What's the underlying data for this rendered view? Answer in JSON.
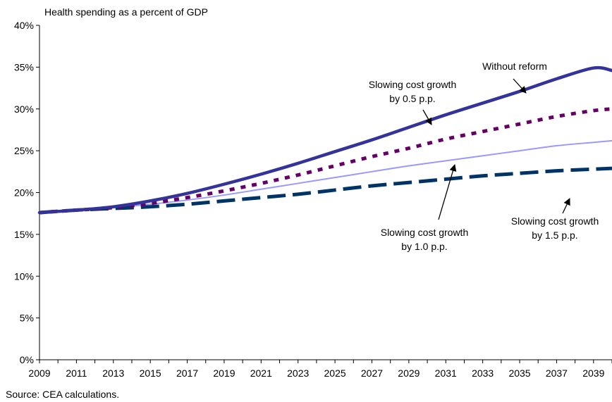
{
  "chart_data": {
    "type": "line",
    "title": "Health spending as a percent of GDP",
    "xlabel": "",
    "ylabel": "",
    "xlim": [
      2009,
      2040
    ],
    "ylim": [
      0,
      40
    ],
    "yticks": [
      0,
      5,
      10,
      15,
      20,
      25,
      30,
      35,
      40
    ],
    "ytick_labels": [
      "0%",
      "5%",
      "10%",
      "15%",
      "20%",
      "25%",
      "30%",
      "35%",
      "40%"
    ],
    "xticks": [
      2009,
      2011,
      2013,
      2015,
      2017,
      2019,
      2021,
      2023,
      2025,
      2027,
      2029,
      2031,
      2033,
      2035,
      2037,
      2039
    ],
    "xtick_labels": [
      "2009",
      "2011",
      "2013",
      "2015",
      "2017",
      "2019",
      "2021",
      "2023",
      "2025",
      "2027",
      "2029",
      "2031",
      "2033",
      "2035",
      "2037",
      "2039"
    ],
    "grid": false,
    "legend": "none (direct annotations)",
    "source": "Source: CEA calculations.",
    "series": [
      {
        "key": "without_reform",
        "color": "#33339A",
        "style": "solid-thick",
        "x": [
          2009,
          2011,
          2013,
          2015,
          2017,
          2019,
          2021,
          2023,
          2025,
          2027,
          2029,
          2031,
          2033,
          2035,
          2037,
          2039,
          2040
        ],
        "y": [
          17.6,
          17.9,
          18.3,
          19.0,
          19.9,
          21.0,
          22.2,
          23.5,
          24.9,
          26.3,
          27.8,
          29.3,
          30.7,
          32.1,
          33.6,
          34.9,
          34.6
        ]
      },
      {
        "key": "slow_0_5",
        "color": "#660066",
        "style": "dotted-thick",
        "x": [
          2009,
          2011,
          2013,
          2015,
          2017,
          2019,
          2021,
          2023,
          2025,
          2027,
          2029,
          2031,
          2033,
          2035,
          2037,
          2039,
          2040
        ],
        "y": [
          17.6,
          17.9,
          18.2,
          18.7,
          19.4,
          20.2,
          21.1,
          22.1,
          23.2,
          24.3,
          25.3,
          26.4,
          27.3,
          28.2,
          29.1,
          29.8,
          30.0
        ]
      },
      {
        "key": "slow_1_0",
        "color": "#9999FF",
        "style": "solid-thin",
        "x": [
          2009,
          2011,
          2013,
          2015,
          2017,
          2019,
          2021,
          2023,
          2025,
          2027,
          2029,
          2031,
          2033,
          2035,
          2037,
          2039,
          2040
        ],
        "y": [
          17.6,
          17.9,
          18.2,
          18.6,
          19.1,
          19.7,
          20.4,
          21.1,
          21.8,
          22.5,
          23.2,
          23.8,
          24.4,
          25.0,
          25.6,
          26.0,
          26.2
        ]
      },
      {
        "key": "slow_1_5",
        "color": "#003366",
        "style": "dashed-thick",
        "x": [
          2009,
          2011,
          2013,
          2015,
          2017,
          2019,
          2021,
          2023,
          2025,
          2027,
          2029,
          2031,
          2033,
          2035,
          2037,
          2039,
          2040
        ],
        "y": [
          17.6,
          17.9,
          18.1,
          18.3,
          18.6,
          19.0,
          19.4,
          19.8,
          20.3,
          20.8,
          21.2,
          21.6,
          22.0,
          22.3,
          22.6,
          22.8,
          22.9
        ]
      }
    ],
    "annotations": [
      {
        "key": "ann_without_reform",
        "lines": [
          "Without reform"
        ]
      },
      {
        "key": "ann_slow_0_5",
        "lines": [
          "Slowing cost growth",
          "by 0.5 p.p."
        ]
      },
      {
        "key": "ann_slow_1_0",
        "lines": [
          "Slowing cost growth",
          "by 1.0 p.p."
        ]
      },
      {
        "key": "ann_slow_1_5",
        "lines": [
          "Slowing cost growth",
          "by 1.5 p.p."
        ]
      }
    ]
  }
}
